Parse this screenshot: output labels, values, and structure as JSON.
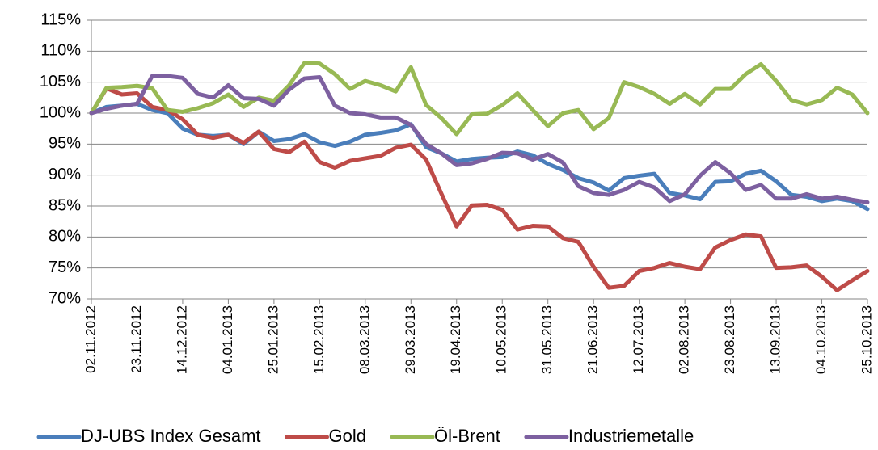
{
  "chart_data": {
    "type": "line",
    "categories": [
      "02.11.2012",
      null,
      null,
      "23.11.2012",
      null,
      null,
      "14.12.2012",
      null,
      null,
      "04.01.2013",
      null,
      null,
      "25.01.2013",
      null,
      null,
      "15.02.2013",
      null,
      null,
      "08.03.2013",
      null,
      null,
      "29.03.2013",
      null,
      null,
      "19.04.2013",
      null,
      null,
      "10.05.2013",
      null,
      null,
      "31.05.2013",
      null,
      null,
      "21.06.2013",
      null,
      null,
      "12.07.2013",
      null,
      null,
      "02.08.2013",
      null,
      null,
      "23.08.2013",
      null,
      null,
      "13.09.2013",
      null,
      null,
      "04.10.2013",
      null,
      null,
      "25.10.2013"
    ],
    "series": [
      {
        "name": "DJ-UBS Index Gesamt",
        "color": "#4a7ebb",
        "values": [
          100,
          101,
          101.2,
          101.5,
          100.5,
          100,
          97.5,
          96.5,
          96.3,
          96.5,
          95,
          97,
          95.5,
          95.8,
          96.6,
          95.3,
          94.7,
          95.4,
          96.5,
          96.8,
          97.2,
          98.2,
          94.5,
          93.5,
          92.2,
          92.6,
          92.8,
          92.9,
          93.8,
          93.2,
          91.8,
          90.8,
          89.5,
          88.8,
          87.5,
          89.5,
          89.9,
          90.2,
          87.1,
          86.7,
          86.1,
          88.9,
          89,
          90.2,
          90.7,
          89,
          86.8,
          86.5,
          85.8,
          86.2,
          85.8,
          84.5
        ]
      },
      {
        "name": "Gold",
        "color": "#be4b48",
        "values": [
          100,
          104,
          103,
          103.2,
          101,
          100.5,
          99,
          96.5,
          96,
          96.5,
          95.2,
          97,
          94.2,
          93.7,
          95.4,
          92.1,
          91.2,
          92.3,
          92.7,
          93.1,
          94.4,
          94.9,
          92.5,
          87,
          81.7,
          85.1,
          85.2,
          84.4,
          81.2,
          81.8,
          81.7,
          79.8,
          79.2,
          75.2,
          71.8,
          72.1,
          74.5,
          75,
          75.8,
          75.2,
          74.8,
          78.3,
          79.5,
          80.4,
          80.1,
          75,
          75.1,
          75.4,
          73.6,
          71.4,
          73,
          74.5
        ]
      },
      {
        "name": "Öl-Brent",
        "color": "#98b954",
        "values": [
          100,
          104.1,
          104.2,
          104.4,
          104,
          100.5,
          100.2,
          100.8,
          101.6,
          103,
          101,
          102.5,
          102,
          104.5,
          108.1,
          108,
          106.3,
          103.9,
          105.2,
          104.5,
          103.5,
          107.4,
          101.3,
          99.2,
          96.6,
          99.8,
          99.9,
          101.3,
          103.2,
          100.5,
          97.9,
          100,
          100.5,
          97.4,
          99.2,
          105,
          104.2,
          103.1,
          101.5,
          103.1,
          101.4,
          103.9,
          103.9,
          106.3,
          107.9,
          105.2,
          102.1,
          101.4,
          102.1,
          104.1,
          103,
          100
        ]
      },
      {
        "name": "Industriemetalle",
        "color": "#7d60a0",
        "values": [
          100,
          100.7,
          101.2,
          101.5,
          106,
          106,
          105.7,
          103.1,
          102.5,
          104.5,
          102.4,
          102.3,
          101.2,
          103.8,
          105.6,
          105.8,
          101.2,
          100,
          99.8,
          99.3,
          99.3,
          98.1,
          95,
          93.5,
          91.6,
          91.9,
          92.6,
          93.6,
          93.5,
          92.5,
          93.4,
          92,
          88.2,
          87.1,
          86.8,
          87.6,
          88.9,
          88,
          85.8,
          86.9,
          89.9,
          92.1,
          90.3,
          87.6,
          88.4,
          86.2,
          86.2,
          86.9,
          86.2,
          86.5,
          86,
          85.6
        ]
      }
    ],
    "ylim": [
      70,
      115
    ],
    "yticks": [
      {
        "value": 70,
        "label": "70%"
      },
      {
        "value": 75,
        "label": "75%"
      },
      {
        "value": 80,
        "label": "80%"
      },
      {
        "value": 85,
        "label": "85%"
      },
      {
        "value": 90,
        "label": "90%"
      },
      {
        "value": 95,
        "label": "95%"
      },
      {
        "value": 100,
        "label": "100%"
      },
      {
        "value": 105,
        "label": "105%"
      },
      {
        "value": 110,
        "label": "110%"
      },
      {
        "value": 115,
        "label": "115%"
      }
    ],
    "grid": true,
    "legend": "bottom"
  }
}
